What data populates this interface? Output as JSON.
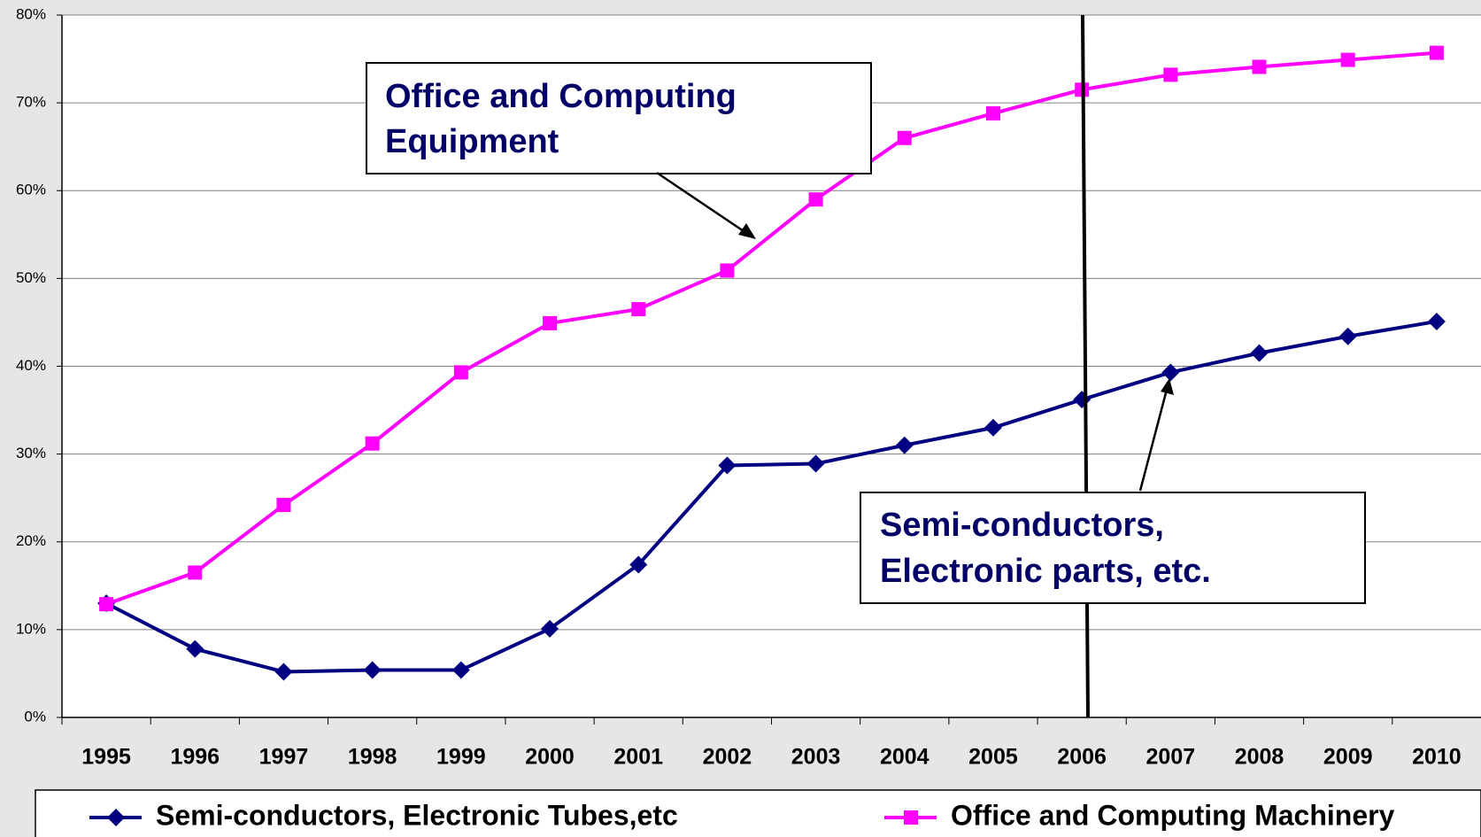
{
  "chart_data": {
    "type": "line",
    "categories": [
      "1995",
      "1996",
      "1997",
      "1998",
      "1999",
      "2000",
      "2001",
      "2002",
      "2003",
      "2004",
      "2005",
      "2006",
      "2007",
      "2008",
      "2009",
      "2010"
    ],
    "series": [
      {
        "name": "Semi-conductors, Electronic Tubes,etc",
        "color": "#000080",
        "marker": "diamond",
        "values": [
          13,
          7.8,
          5.2,
          5.4,
          5.4,
          10.1,
          17.4,
          28.7,
          28.9,
          31,
          33,
          36.2,
          39.3,
          41.5,
          43.4,
          45.1
        ]
      },
      {
        "name": "Office and Computing Machinery",
        "color": "#ff00ff",
        "marker": "square",
        "values": [
          12.9,
          16.5,
          24.2,
          31.2,
          39.3,
          44.9,
          46.5,
          50.9,
          59,
          66,
          68.8,
          71.5,
          73.2,
          74.1,
          74.9,
          75.7
        ]
      }
    ],
    "ylim": [
      0,
      80
    ],
    "yticks": [
      {
        "value": 0,
        "label": "0%"
      },
      {
        "value": 10,
        "label": "10%"
      },
      {
        "value": 20,
        "label": "20%"
      },
      {
        "value": 30,
        "label": "30%"
      },
      {
        "value": 40,
        "label": "40%"
      },
      {
        "value": 50,
        "label": "50%"
      },
      {
        "value": 60,
        "label": "60%"
      },
      {
        "value": 70,
        "label": "70%"
      },
      {
        "value": 80,
        "label": "80%"
      }
    ],
    "grid": true,
    "legend": "bottom",
    "annotations": [
      {
        "lines": [
          "Office and Computing",
          "Equipment"
        ]
      },
      {
        "lines": [
          "Semi-conductors,",
          "Electronic parts, etc."
        ]
      }
    ]
  }
}
